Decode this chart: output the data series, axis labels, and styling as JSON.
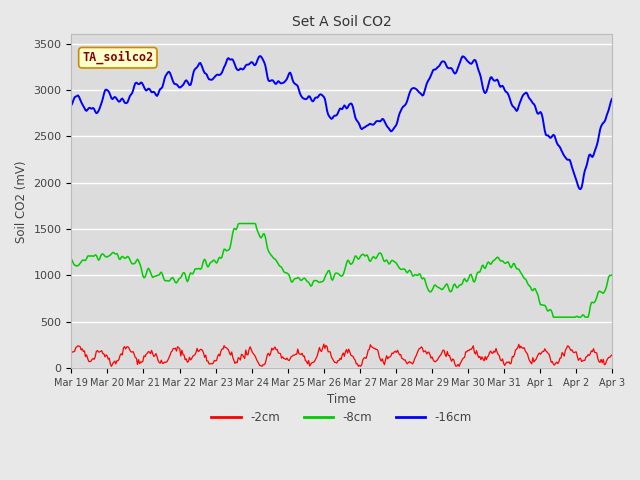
{
  "title": "Set A Soil CO2",
  "xlabel": "Time",
  "ylabel": "Soil CO2 (mV)",
  "legend_label": "TA_soilco2",
  "series_labels": [
    "-2cm",
    "-8cm",
    "-16cm"
  ],
  "series_colors": [
    "#ff0000",
    "#00cc00",
    "#0000ff"
  ],
  "ylim": [
    0,
    3600
  ],
  "yticks": [
    0,
    500,
    1000,
    1500,
    2000,
    2500,
    3000,
    3500
  ],
  "n_points": 500,
  "bg_color": "#e8e8e8",
  "plot_bg_color": "#dcdcdc",
  "legend_box_facecolor": "#ffffcc",
  "legend_box_edgecolor": "#cc8800",
  "legend_text_color": "#880000"
}
